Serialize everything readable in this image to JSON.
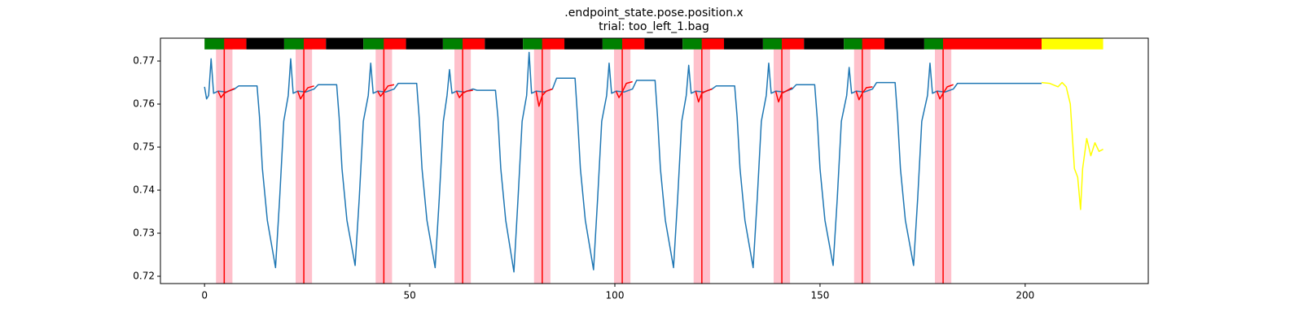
{
  "chart_data": {
    "type": "line",
    "title": ".endpoint_state.pose.position.x",
    "subtitle": "trial: too_left_1.bag",
    "xlim": [
      -10.75,
      230
    ],
    "ylim": [
      0.7183,
      0.7753
    ],
    "xticks": [
      0,
      50,
      100,
      150,
      200
    ],
    "yticks": [
      0.72,
      0.73,
      0.74,
      0.75,
      0.76,
      0.77
    ],
    "span_color": "#ffc0cb",
    "event_color": "red",
    "spans": [
      [
        2.8,
        6.8
      ],
      [
        22.2,
        26.2
      ],
      [
        41.7,
        45.7
      ],
      [
        60.9,
        64.9
      ],
      [
        80.3,
        84.3
      ],
      [
        99.8,
        103.8
      ],
      [
        119.2,
        123.2
      ],
      [
        138.7,
        142.7
      ],
      [
        158.3,
        162.3
      ],
      [
        178.0,
        182.0
      ]
    ],
    "events": [
      4.8,
      24.2,
      43.7,
      62.9,
      82.3,
      101.8,
      121.2,
      140.7,
      160.3,
      180.0
    ],
    "timeline_ylim": [
      0.7727,
      0.7753
    ],
    "timeline": [
      {
        "start": 0,
        "end": 4.8,
        "color": "#008000"
      },
      {
        "start": 4.8,
        "end": 10.2,
        "color": "red"
      },
      {
        "start": 10.2,
        "end": 19.4,
        "color": "black"
      },
      {
        "start": 19.4,
        "end": 24.2,
        "color": "#008000"
      },
      {
        "start": 24.2,
        "end": 29.6,
        "color": "red"
      },
      {
        "start": 29.6,
        "end": 38.7,
        "color": "black"
      },
      {
        "start": 38.7,
        "end": 43.7,
        "color": "#008000"
      },
      {
        "start": 43.7,
        "end": 49.1,
        "color": "red"
      },
      {
        "start": 49.1,
        "end": 58.1,
        "color": "black"
      },
      {
        "start": 58.1,
        "end": 62.9,
        "color": "#008000"
      },
      {
        "start": 62.9,
        "end": 68.3,
        "color": "red"
      },
      {
        "start": 68.3,
        "end": 77.6,
        "color": "black"
      },
      {
        "start": 77.6,
        "end": 82.3,
        "color": "#008000"
      },
      {
        "start": 82.3,
        "end": 87.7,
        "color": "red"
      },
      {
        "start": 87.7,
        "end": 97.0,
        "color": "black"
      },
      {
        "start": 97.0,
        "end": 101.8,
        "color": "#008000"
      },
      {
        "start": 101.8,
        "end": 107.2,
        "color": "red"
      },
      {
        "start": 107.2,
        "end": 116.5,
        "color": "black"
      },
      {
        "start": 116.5,
        "end": 121.2,
        "color": "#008000"
      },
      {
        "start": 121.2,
        "end": 126.6,
        "color": "red"
      },
      {
        "start": 126.6,
        "end": 136.1,
        "color": "black"
      },
      {
        "start": 136.1,
        "end": 140.7,
        "color": "#008000"
      },
      {
        "start": 140.7,
        "end": 146.1,
        "color": "red"
      },
      {
        "start": 146.1,
        "end": 155.8,
        "color": "black"
      },
      {
        "start": 155.8,
        "end": 160.3,
        "color": "#008000"
      },
      {
        "start": 160.3,
        "end": 165.7,
        "color": "red"
      },
      {
        "start": 165.7,
        "end": 175.4,
        "color": "black"
      },
      {
        "start": 175.4,
        "end": 180.0,
        "color": "#008000"
      },
      {
        "start": 180.0,
        "end": 204.0,
        "color": "red"
      },
      {
        "start": 204.0,
        "end": 219.0,
        "color": "yellow"
      }
    ],
    "series": [
      {
        "color": "#1f77b4",
        "x": [
          0,
          0.5,
          1.0,
          1.6,
          2.2,
          3.3,
          5.3,
          7.3,
          8.3,
          12.8,
          13.4,
          14.1,
          15.3,
          17.3,
          18.3,
          19.3,
          20.4,
          21.0,
          21.6,
          22.7,
          24.7,
          26.7,
          27.7,
          32.2,
          32.8,
          33.5,
          34.7,
          36.7,
          37.7,
          38.7,
          39.9,
          40.5,
          41.1,
          42.2,
          44.2,
          46.2,
          47.2,
          51.7,
          52.3,
          53.0,
          54.2,
          56.2,
          57.2,
          58.2,
          59.1,
          59.7,
          60.3,
          61.4,
          63.4,
          65.4,
          66.4,
          70.9,
          71.5,
          72.2,
          73.4,
          75.4,
          76.4,
          77.4,
          78.5,
          79.1,
          79.7,
          80.8,
          82.8,
          84.8,
          85.8,
          90.3,
          90.9,
          91.6,
          92.8,
          94.8,
          95.8,
          96.8,
          98.0,
          98.6,
          99.2,
          100.3,
          102.3,
          104.3,
          105.3,
          109.8,
          110.4,
          111.1,
          112.3,
          114.3,
          115.3,
          116.3,
          117.4,
          118.0,
          118.6,
          119.7,
          121.7,
          123.7,
          124.7,
          129.2,
          129.8,
          130.5,
          131.7,
          133.7,
          134.7,
          135.7,
          136.9,
          137.5,
          138.1,
          139.2,
          141.2,
          143.2,
          144.2,
          148.7,
          149.3,
          150.0,
          151.2,
          153.2,
          154.2,
          155.2,
          156.5,
          157.1,
          157.7,
          158.8,
          160.8,
          162.8,
          163.8,
          168.3,
          168.9,
          169.6,
          170.8,
          172.8,
          173.8,
          174.8,
          176.2,
          176.8,
          177.4,
          178.5,
          180.5,
          182.5,
          183.5,
          204.0
        ],
        "values": [
          0.764,
          0.7612,
          0.762,
          0.7705,
          0.7625,
          0.763,
          0.7628,
          0.7635,
          0.7642,
          0.7642,
          0.757,
          0.745,
          0.733,
          0.722,
          0.738,
          0.756,
          0.762,
          0.7705,
          0.7625,
          0.763,
          0.7628,
          0.7635,
          0.7645,
          0.7645,
          0.757,
          0.745,
          0.733,
          0.7225,
          0.738,
          0.756,
          0.762,
          0.7695,
          0.7625,
          0.763,
          0.7628,
          0.7635,
          0.7648,
          0.7648,
          0.757,
          0.745,
          0.733,
          0.722,
          0.738,
          0.756,
          0.762,
          0.768,
          0.7625,
          0.763,
          0.7628,
          0.7635,
          0.7632,
          0.7632,
          0.757,
          0.745,
          0.733,
          0.721,
          0.738,
          0.756,
          0.762,
          0.772,
          0.7625,
          0.763,
          0.7628,
          0.7635,
          0.766,
          0.766,
          0.757,
          0.745,
          0.733,
          0.7215,
          0.738,
          0.756,
          0.762,
          0.7695,
          0.7625,
          0.763,
          0.7628,
          0.7635,
          0.7655,
          0.7655,
          0.757,
          0.745,
          0.733,
          0.722,
          0.738,
          0.756,
          0.762,
          0.769,
          0.7625,
          0.763,
          0.7628,
          0.7635,
          0.7642,
          0.7642,
          0.757,
          0.745,
          0.733,
          0.722,
          0.738,
          0.756,
          0.762,
          0.7695,
          0.7625,
          0.763,
          0.7628,
          0.7635,
          0.7645,
          0.7645,
          0.757,
          0.745,
          0.733,
          0.7225,
          0.738,
          0.756,
          0.762,
          0.7685,
          0.7625,
          0.763,
          0.7628,
          0.7635,
          0.765,
          0.765,
          0.757,
          0.745,
          0.733,
          0.7225,
          0.738,
          0.756,
          0.762,
          0.7695,
          0.7625,
          0.763,
          0.7628,
          0.7635,
          0.7648,
          0.7648
        ]
      },
      {
        "color": "red",
        "x": [
          3.3,
          4.0,
          4.8,
          5.8,
          7.3,
          null,
          22.7,
          23.4,
          24.2,
          25.2,
          26.7,
          null,
          42.2,
          42.9,
          43.7,
          44.7,
          46.2,
          null,
          61.4,
          62.1,
          62.9,
          63.9,
          65.4,
          null,
          80.8,
          81.5,
          82.3,
          83.3,
          84.8,
          null,
          100.3,
          101.0,
          101.8,
          102.8,
          104.3,
          null,
          119.7,
          120.4,
          121.2,
          122.2,
          123.7,
          null,
          139.2,
          139.9,
          140.7,
          141.7,
          143.2,
          null,
          158.8,
          159.5,
          160.3,
          161.3,
          162.8,
          null,
          178.5,
          179.2,
          180.0,
          181.0,
          182.5
        ],
        "values": [
          0.763,
          0.7615,
          0.7625,
          0.763,
          0.7636,
          null,
          0.763,
          0.7612,
          0.7625,
          0.7638,
          0.7642,
          null,
          0.763,
          0.7618,
          0.7628,
          0.7642,
          0.7645,
          null,
          0.763,
          0.7615,
          0.7625,
          0.763,
          0.7632,
          null,
          0.763,
          0.7595,
          0.762,
          0.763,
          0.7635,
          null,
          0.763,
          0.7615,
          0.7628,
          0.7648,
          0.7652,
          null,
          0.763,
          0.7605,
          0.7625,
          0.763,
          0.7635,
          null,
          0.763,
          0.7605,
          0.7625,
          0.763,
          0.7638,
          null,
          0.763,
          0.761,
          0.7625,
          0.7638,
          0.764,
          null,
          0.763,
          0.7612,
          0.7625,
          0.764,
          0.7645
        ]
      },
      {
        "color": "yellow",
        "x": [
          204,
          206,
          208,
          209,
          210,
          211,
          212,
          212.8,
          213.5,
          214,
          215,
          216,
          217,
          218,
          219
        ],
        "values": [
          0.765,
          0.7648,
          0.764,
          0.765,
          0.764,
          0.76,
          0.745,
          0.743,
          0.7355,
          0.745,
          0.752,
          0.748,
          0.751,
          0.749,
          0.7495
        ]
      }
    ]
  }
}
